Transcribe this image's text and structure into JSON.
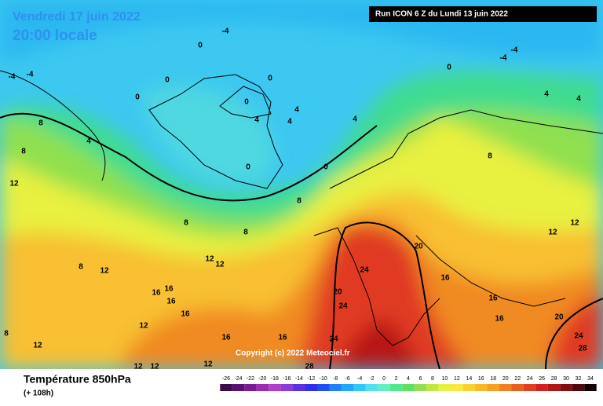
{
  "header": {
    "date": "Vendredi 17 juin 2022",
    "time": "20:00 locale",
    "run": "Run ICON 6 Z du Lundi 13 juin 2022"
  },
  "copyright": "Copyright (c) 2022 Meteociel.fr",
  "footer": {
    "title": "Température 850hPa",
    "subtitle": "(+ 108h)"
  },
  "colorbar": {
    "labels": [
      -26,
      -24,
      -22,
      -20,
      -18,
      -16,
      -14,
      -12,
      -10,
      -8,
      -6,
      -4,
      -2,
      0,
      2,
      4,
      6,
      8,
      10,
      12,
      14,
      16,
      18,
      20,
      22,
      24,
      26,
      28,
      30,
      32,
      34
    ],
    "colors": [
      "#3a0a4a",
      "#5a1070",
      "#7a1a90",
      "#9a2ab0",
      "#b040c8",
      "#8a3ad8",
      "#5a30e0",
      "#3030e8",
      "#2050f0",
      "#2080f8",
      "#20a8f8",
      "#30c8f8",
      "#50e0f0",
      "#60f0c0",
      "#50e890",
      "#60e060",
      "#90e050",
      "#c0e840",
      "#e8f040",
      "#f8e840",
      "#f8d030",
      "#f8b828",
      "#f8a020",
      "#f08020",
      "#e86020",
      "#e04020",
      "#d02020",
      "#b01818",
      "#801010",
      "#500808",
      "#100000"
    ]
  },
  "contour_labels": [
    "-4",
    "0",
    "-4",
    "-4",
    "0",
    "0",
    "0",
    "0",
    "4",
    "4",
    "4",
    "4",
    "0",
    "0",
    "8",
    "8",
    "4",
    "12",
    "8",
    "8",
    "8",
    "12",
    "12",
    "8",
    "12",
    "16",
    "16",
    "16",
    "16",
    "12",
    "16",
    "16",
    "24",
    "20",
    "24",
    "20",
    "16",
    "16",
    "16",
    "20",
    "24",
    "28",
    "24",
    "28",
    "12",
    "12",
    "8",
    "4",
    "4",
    "-4",
    "-4",
    "0",
    "12",
    "12",
    "12",
    "12",
    "8"
  ]
}
